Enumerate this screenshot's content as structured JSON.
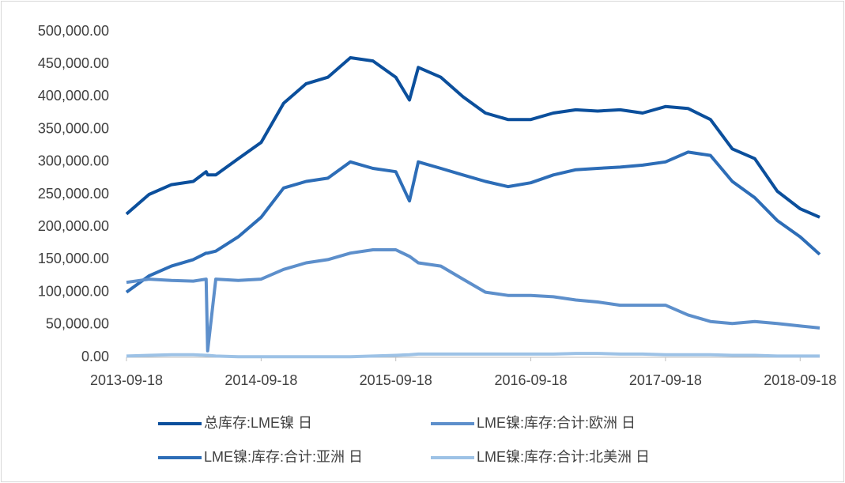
{
  "chart_data": {
    "type": "line",
    "x": [
      "2013-09-18",
      "2013-11-18",
      "2014-01-18",
      "2014-03-18",
      "2014-04-22",
      "2014-04-26",
      "2014-05-18",
      "2014-07-18",
      "2014-09-18",
      "2014-11-18",
      "2015-01-18",
      "2015-03-18",
      "2015-05-18",
      "2015-07-18",
      "2015-09-18",
      "2015-10-25",
      "2015-11-18",
      "2016-01-18",
      "2016-03-18",
      "2016-05-18",
      "2016-07-18",
      "2016-09-18",
      "2016-11-18",
      "2017-01-18",
      "2017-03-18",
      "2017-05-18",
      "2017-07-18",
      "2017-09-18",
      "2017-11-18",
      "2018-01-18",
      "2018-03-18",
      "2018-05-18",
      "2018-07-18",
      "2018-09-18",
      "2018-11-10"
    ],
    "series": [
      {
        "name": "总库存:LME镍 日",
        "color": "#0b4f9c",
        "values": [
          220000,
          250000,
          265000,
          270000,
          285000,
          280000,
          280000,
          305000,
          330000,
          390000,
          420000,
          430000,
          460000,
          455000,
          430000,
          395000,
          445000,
          430000,
          400000,
          375000,
          365000,
          365000,
          375000,
          380000,
          378000,
          380000,
          375000,
          385000,
          382000,
          365000,
          320000,
          305000,
          255000,
          228000,
          215000
        ]
      },
      {
        "name": "LME镍:库存:合计:欧洲 日",
        "color": "#5d8fcb",
        "values": [
          115000,
          120000,
          118000,
          117000,
          120000,
          10000,
          120000,
          118000,
          120000,
          135000,
          145000,
          150000,
          160000,
          165000,
          165000,
          155000,
          145000,
          140000,
          120000,
          100000,
          95000,
          95000,
          93000,
          88000,
          85000,
          80000,
          80000,
          80000,
          65000,
          55000,
          52000,
          55000,
          52000,
          48000,
          45000
        ]
      },
      {
        "name": "LME镍:库存:合计:亚洲 日",
        "color": "#2d6db7",
        "values": [
          100000,
          125000,
          140000,
          150000,
          160000,
          160000,
          163000,
          185000,
          215000,
          260000,
          270000,
          275000,
          300000,
          290000,
          285000,
          240000,
          300000,
          290000,
          280000,
          270000,
          262000,
          268000,
          280000,
          288000,
          290000,
          292000,
          295000,
          300000,
          315000,
          310000,
          270000,
          245000,
          210000,
          185000,
          158000
        ]
      },
      {
        "name": "LME镍:库存:合计:北美洲 日",
        "color": "#9dc2e6",
        "values": [
          2000,
          3000,
          4000,
          4000,
          3000,
          3000,
          2000,
          1000,
          1000,
          1000,
          1000,
          1000,
          1000,
          2000,
          3000,
          4000,
          5000,
          5000,
          5000,
          5000,
          5000,
          5000,
          5000,
          6000,
          6000,
          5000,
          5000,
          4000,
          4000,
          4000,
          3000,
          3000,
          2000,
          2000,
          2000
        ]
      }
    ],
    "xlim": [
      "2013-09-18",
      "2018-11-10"
    ],
    "xticks": [
      "2013-09-18",
      "2014-09-18",
      "2015-09-18",
      "2016-09-18",
      "2017-09-18",
      "2018-09-18"
    ],
    "ylim": [
      0,
      500000
    ],
    "yticks": [
      {
        "value": 0,
        "label": "0.00"
      },
      {
        "value": 50000,
        "label": "50,000.00"
      },
      {
        "value": 100000,
        "label": "100,000.00"
      },
      {
        "value": 150000,
        "label": "150,000.00"
      },
      {
        "value": 200000,
        "label": "200,000.00"
      },
      {
        "value": 250000,
        "label": "250,000.00"
      },
      {
        "value": 300000,
        "label": "300,000.00"
      },
      {
        "value": 350000,
        "label": "350,000.00"
      },
      {
        "value": 400000,
        "label": "400,000.00"
      },
      {
        "value": 450000,
        "label": "450,000.00"
      },
      {
        "value": 500000,
        "label": "500,000.00"
      }
    ],
    "grid": false
  }
}
